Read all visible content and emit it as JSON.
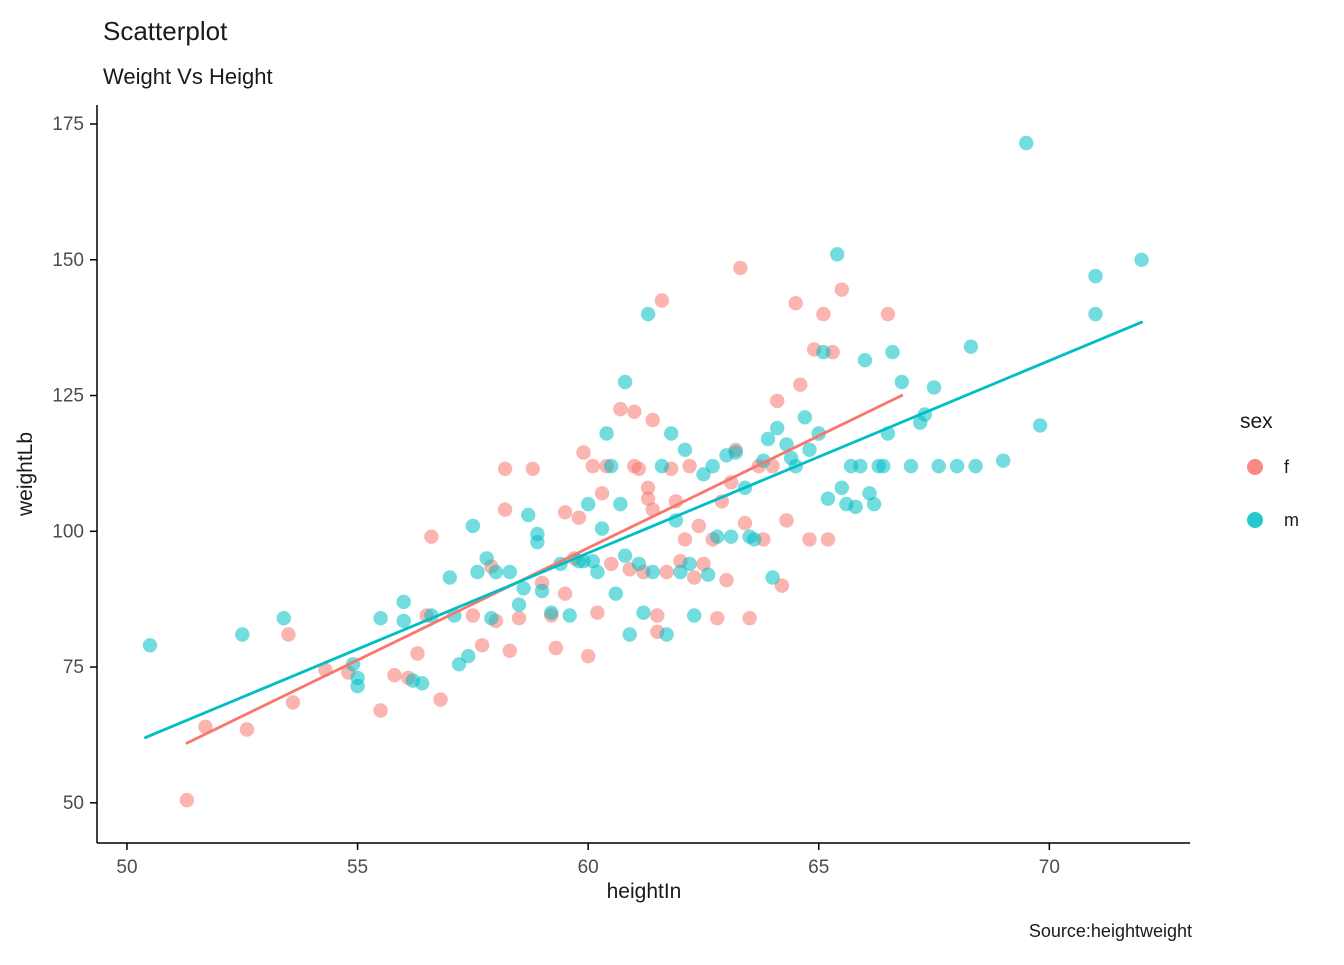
{
  "chart_data": {
    "type": "scatter",
    "title": "Scatterplot",
    "subtitle": "Weight Vs Height",
    "xlabel": "heightIn",
    "ylabel": "weightLb",
    "caption": "Source:heightweight",
    "xlim": [
      49.35,
      73.05
    ],
    "ylim": [
      42.6,
      178.5
    ],
    "x_ticks": [
      50,
      55,
      60,
      65,
      70
    ],
    "y_ticks": [
      50,
      75,
      100,
      125,
      150,
      175
    ],
    "grid": false,
    "point_opacity": 0.55,
    "legend": {
      "title": "sex",
      "position": "right",
      "entries": [
        {
          "label": "f",
          "color": "#F8766D"
        },
        {
          "label": "m",
          "color": "#00BFC4"
        }
      ]
    },
    "series": [
      {
        "name": "f",
        "color": "#F8766D",
        "points": [
          [
            51.3,
            50.5
          ],
          [
            51.7,
            64
          ],
          [
            52.6,
            63.5
          ],
          [
            53.5,
            81
          ],
          [
            53.6,
            68.5
          ],
          [
            54.3,
            74.5
          ],
          [
            54.8,
            74
          ],
          [
            55.5,
            67
          ],
          [
            55.8,
            73.5
          ],
          [
            56.1,
            73
          ],
          [
            56.3,
            77.5
          ],
          [
            56.5,
            84.5
          ],
          [
            56.8,
            69
          ],
          [
            56.6,
            99
          ],
          [
            57.5,
            84.5
          ],
          [
            57.7,
            79
          ],
          [
            57.9,
            93.5
          ],
          [
            58.0,
            83.5
          ],
          [
            58.2,
            104
          ],
          [
            58.2,
            111.5
          ],
          [
            58.3,
            78
          ],
          [
            58.5,
            84
          ],
          [
            58.8,
            111.5
          ],
          [
            59.0,
            90.5
          ],
          [
            59.2,
            84.5
          ],
          [
            59.3,
            78.5
          ],
          [
            59.5,
            103.5
          ],
          [
            59.5,
            88.5
          ],
          [
            59.7,
            95
          ],
          [
            59.8,
            102.5
          ],
          [
            59.9,
            114.5
          ],
          [
            60.0,
            77
          ],
          [
            60.1,
            112
          ],
          [
            60.2,
            85
          ],
          [
            60.3,
            107
          ],
          [
            60.4,
            112
          ],
          [
            60.5,
            94
          ],
          [
            60.7,
            122.5
          ],
          [
            60.9,
            93
          ],
          [
            61.0,
            122
          ],
          [
            61.0,
            112
          ],
          [
            61.1,
            111.5
          ],
          [
            61.2,
            92.5
          ],
          [
            61.3,
            108
          ],
          [
            61.3,
            106
          ],
          [
            61.4,
            120.5
          ],
          [
            61.4,
            104
          ],
          [
            61.5,
            84.5
          ],
          [
            61.5,
            81.5
          ],
          [
            61.6,
            142.5
          ],
          [
            61.7,
            92.5
          ],
          [
            61.8,
            111.5
          ],
          [
            61.9,
            105.5
          ],
          [
            62.0,
            94.5
          ],
          [
            62.1,
            98.5
          ],
          [
            62.2,
            112
          ],
          [
            62.3,
            91.5
          ],
          [
            62.4,
            101
          ],
          [
            62.5,
            94
          ],
          [
            62.7,
            98.5
          ],
          [
            62.8,
            84
          ],
          [
            62.9,
            105.5
          ],
          [
            63.0,
            91
          ],
          [
            63.1,
            109
          ],
          [
            63.2,
            115
          ],
          [
            63.3,
            148.5
          ],
          [
            63.4,
            101.5
          ],
          [
            63.5,
            84
          ],
          [
            63.7,
            112
          ],
          [
            63.8,
            98.5
          ],
          [
            64.0,
            112
          ],
          [
            64.1,
            124
          ],
          [
            64.2,
            90
          ],
          [
            64.3,
            102
          ],
          [
            64.5,
            142
          ],
          [
            64.6,
            127
          ],
          [
            64.8,
            98.5
          ],
          [
            64.9,
            133.5
          ],
          [
            65.1,
            140
          ],
          [
            65.2,
            98.5
          ],
          [
            65.3,
            133
          ],
          [
            65.5,
            144.5
          ],
          [
            66.5,
            140
          ]
        ]
      },
      {
        "name": "m",
        "color": "#00BFC4",
        "points": [
          [
            50.5,
            79
          ],
          [
            52.5,
            81
          ],
          [
            53.4,
            84
          ],
          [
            54.9,
            75.5
          ],
          [
            55.0,
            73
          ],
          [
            55.0,
            71.5
          ],
          [
            55.5,
            84
          ],
          [
            56.0,
            87
          ],
          [
            56.0,
            83.5
          ],
          [
            56.2,
            72.5
          ],
          [
            56.4,
            72
          ],
          [
            56.6,
            84.5
          ],
          [
            57.0,
            91.5
          ],
          [
            57.1,
            84.5
          ],
          [
            57.2,
            75.5
          ],
          [
            57.4,
            77
          ],
          [
            57.5,
            101
          ],
          [
            57.6,
            92.5
          ],
          [
            57.8,
            95
          ],
          [
            57.9,
            84
          ],
          [
            58.0,
            92.5
          ],
          [
            58.3,
            92.5
          ],
          [
            58.5,
            86.5
          ],
          [
            58.6,
            89.5
          ],
          [
            58.7,
            103
          ],
          [
            58.9,
            99.5
          ],
          [
            58.9,
            98
          ],
          [
            59.0,
            89
          ],
          [
            59.2,
            85
          ],
          [
            59.4,
            94
          ],
          [
            59.6,
            84.5
          ],
          [
            59.8,
            94.5
          ],
          [
            59.9,
            94.5
          ],
          [
            60.0,
            105
          ],
          [
            60.1,
            94.5
          ],
          [
            60.2,
            92.5
          ],
          [
            60.3,
            100.5
          ],
          [
            60.4,
            118
          ],
          [
            60.5,
            112
          ],
          [
            60.6,
            88.5
          ],
          [
            60.7,
            105
          ],
          [
            60.8,
            127.5
          ],
          [
            60.8,
            95.5
          ],
          [
            60.9,
            81
          ],
          [
            61.1,
            94
          ],
          [
            61.2,
            85
          ],
          [
            61.3,
            140
          ],
          [
            61.4,
            92.5
          ],
          [
            61.6,
            112
          ],
          [
            61.7,
            81
          ],
          [
            61.8,
            118
          ],
          [
            61.9,
            102
          ],
          [
            62.0,
            92.5
          ],
          [
            62.1,
            115
          ],
          [
            62.2,
            94
          ],
          [
            62.3,
            84.5
          ],
          [
            62.5,
            110.5
          ],
          [
            62.6,
            92
          ],
          [
            62.7,
            112
          ],
          [
            62.8,
            99
          ],
          [
            63.0,
            114
          ],
          [
            63.1,
            99
          ],
          [
            63.2,
            114.5
          ],
          [
            63.4,
            108
          ],
          [
            63.5,
            99
          ],
          [
            63.6,
            98.5
          ],
          [
            63.8,
            113
          ],
          [
            63.9,
            117
          ],
          [
            64.0,
            91.5
          ],
          [
            64.1,
            119
          ],
          [
            64.3,
            116
          ],
          [
            64.4,
            113.5
          ],
          [
            64.5,
            112
          ],
          [
            64.7,
            121
          ],
          [
            64.8,
            115
          ],
          [
            65.0,
            118
          ],
          [
            65.1,
            133
          ],
          [
            65.2,
            106
          ],
          [
            65.4,
            151
          ],
          [
            65.5,
            108
          ],
          [
            65.6,
            105
          ],
          [
            65.7,
            112
          ],
          [
            65.8,
            104.5
          ],
          [
            65.9,
            112
          ],
          [
            66.0,
            131.5
          ],
          [
            66.1,
            107
          ],
          [
            66.2,
            105
          ],
          [
            66.3,
            112
          ],
          [
            66.4,
            112
          ],
          [
            66.5,
            118
          ],
          [
            66.6,
            133
          ],
          [
            66.8,
            127.5
          ],
          [
            67.0,
            112
          ],
          [
            67.2,
            120
          ],
          [
            67.3,
            121.5
          ],
          [
            67.5,
            126.5
          ],
          [
            67.6,
            112
          ],
          [
            68.0,
            112
          ],
          [
            68.3,
            134
          ],
          [
            68.4,
            112
          ],
          [
            69.0,
            113
          ],
          [
            69.5,
            171.5
          ],
          [
            69.8,
            119.5
          ],
          [
            71.0,
            147
          ],
          [
            71.0,
            140
          ],
          [
            72.0,
            150
          ]
        ]
      }
    ],
    "trend_lines": [
      {
        "name": "f",
        "color": "#F8766D",
        "x1": 51.3,
        "y1": 61.0,
        "x2": 66.8,
        "y2": 125.0
      },
      {
        "name": "m",
        "color": "#00BFC4",
        "x1": 50.4,
        "y1": 62.0,
        "x2": 72.0,
        "y2": 138.5
      }
    ]
  }
}
